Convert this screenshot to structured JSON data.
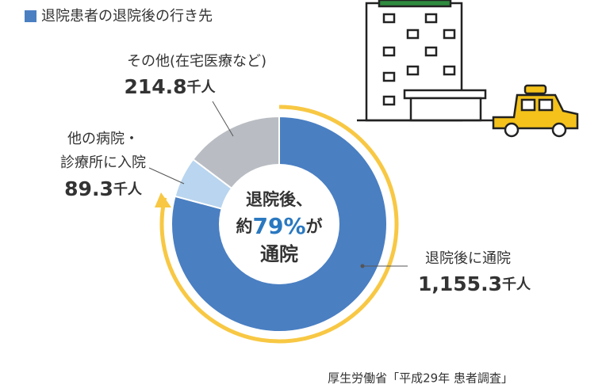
{
  "chart_data": {
    "type": "donut",
    "title": "退院患者の退院後の行き先",
    "categories": [
      "退院後に通院",
      "他の病院・\n診療所に入院",
      "その他(在宅医療など)"
    ],
    "values": [
      1155.3,
      89.3,
      214.8
    ],
    "value_labels": [
      "1,155.3",
      "89.3",
      "214.8"
    ],
    "unit": "千人",
    "colors": [
      "#4a7fc2",
      "#b9d5ef",
      "#b9bdc3"
    ],
    "center_text": [
      "退院後、",
      "約",
      "79%",
      "が",
      "通院"
    ],
    "source": "厚生労働省「平成29年 患者調査」"
  }
}
